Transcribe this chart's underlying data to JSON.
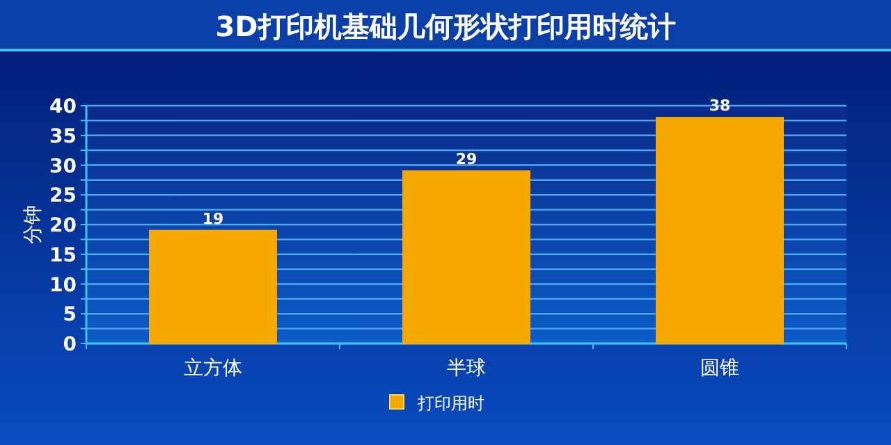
{
  "chart_data": {
    "type": "bar",
    "title": "3D打印机基础几何形状打印用时统计",
    "ylabel": "分钟",
    "categories": [
      "立方体",
      "半球",
      "圆锥"
    ],
    "series": [
      {
        "name": "打印用时",
        "color": "#f5a800",
        "values": [
          19,
          29,
          38
        ]
      }
    ],
    "ylim": [
      0,
      40
    ],
    "yticks": [
      0,
      {
        "value": 2.5,
        "label": null
      },
      5,
      {
        "value": 7.5,
        "label": null
      },
      10,
      {
        "value": 12.5,
        "label": null
      },
      15,
      {
        "value": 17.5,
        "label": null
      },
      20,
      {
        "value": 22.5,
        "label": null
      },
      25,
      {
        "value": 27.5,
        "label": null
      },
      30,
      {
        "value": 32.5,
        "label": null
      },
      35,
      {
        "value": 37.5,
        "label": null
      },
      40
    ],
    "grid": "y",
    "legend": "bottom",
    "data_labels": true
  }
}
